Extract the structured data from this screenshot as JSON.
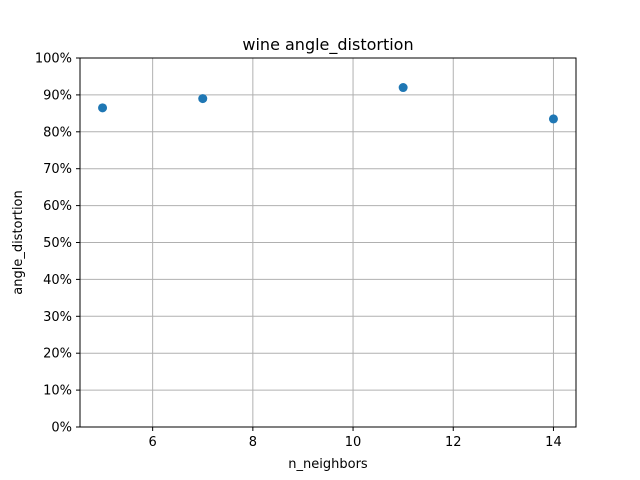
{
  "chart_data": {
    "type": "scatter",
    "title": "wine angle_distortion",
    "xlabel": "n_neighbors",
    "ylabel": "angle_distortion",
    "xlim": [
      4.55,
      14.45
    ],
    "ylim": [
      0,
      1
    ],
    "x_ticks": [
      6,
      8,
      10,
      12,
      14
    ],
    "x_tick_labels": [
      "6",
      "8",
      "10",
      "12",
      "14"
    ],
    "y_ticks": [
      0,
      0.1,
      0.2,
      0.3,
      0.4,
      0.5,
      0.6,
      0.7,
      0.8,
      0.9,
      1.0
    ],
    "y_tick_labels": [
      "0%",
      "10%",
      "20%",
      "30%",
      "40%",
      "50%",
      "60%",
      "70%",
      "80%",
      "90%",
      "100%"
    ],
    "grid": true,
    "series": [
      {
        "color": "#1f77b4",
        "points": [
          {
            "x": 5,
            "y": 0.865
          },
          {
            "x": 7,
            "y": 0.89
          },
          {
            "x": 11,
            "y": 0.92
          },
          {
            "x": 14,
            "y": 0.835
          }
        ]
      }
    ]
  }
}
